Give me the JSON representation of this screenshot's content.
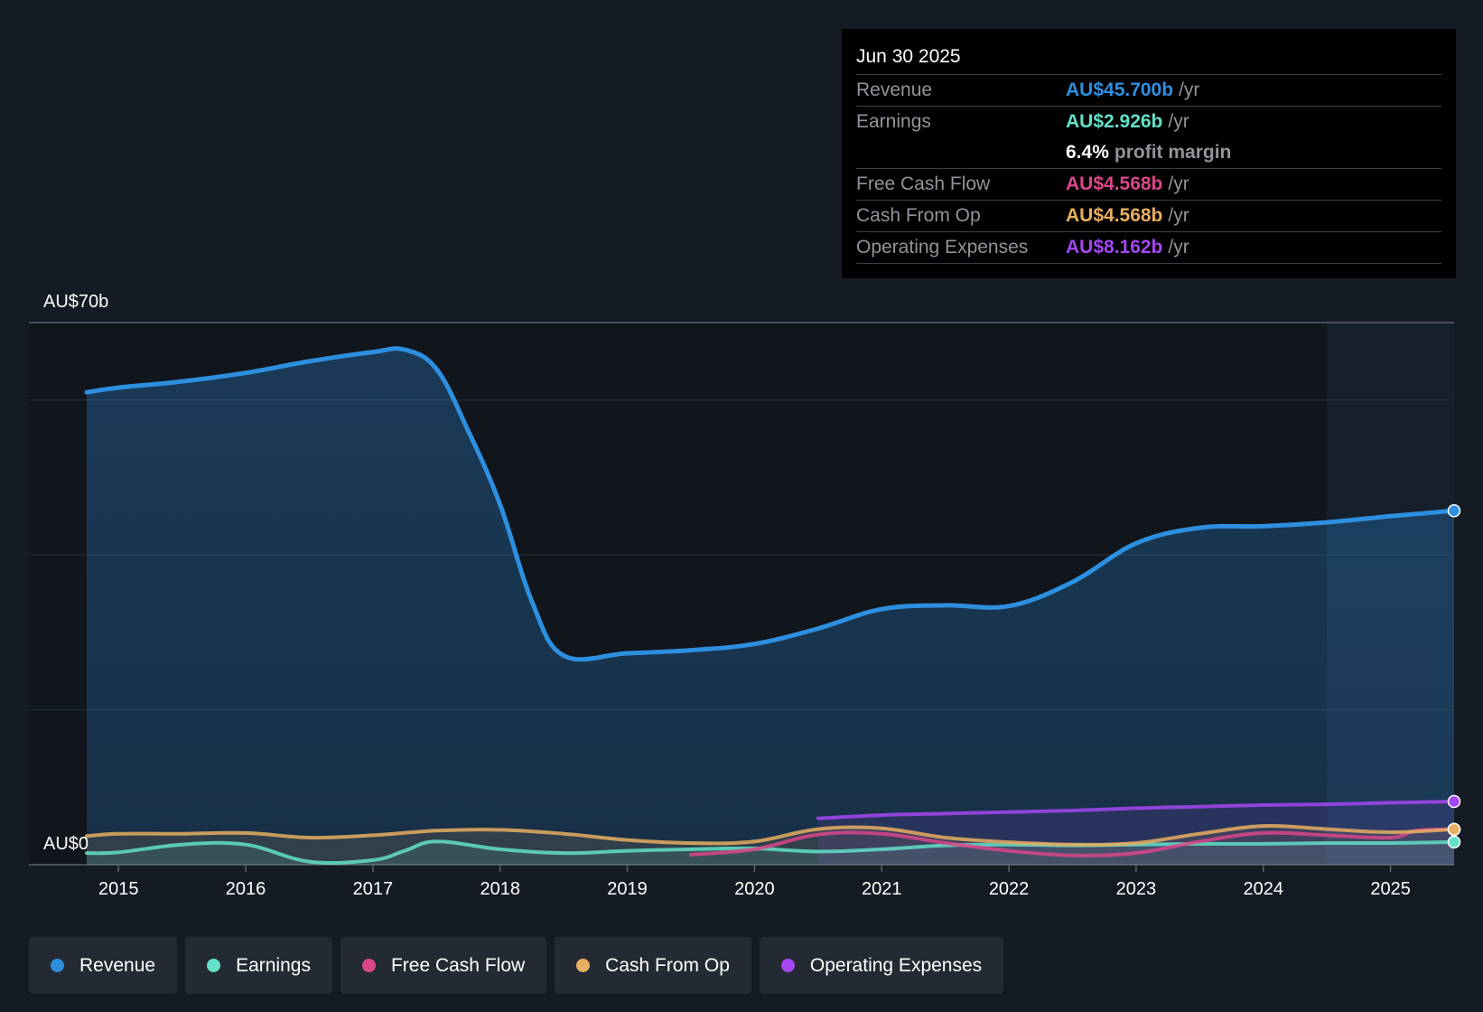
{
  "tooltip": {
    "date": "Jun 30 2025",
    "rows": [
      {
        "label": "Revenue",
        "value": "AU$45.700b",
        "unit": "/yr",
        "color": "#2d8fe0"
      },
      {
        "label": "Earnings",
        "value": "AU$2.926b",
        "unit": "/yr",
        "color": "#62e0c8"
      },
      {
        "label": "",
        "value": "6.4%",
        "unit": "profit margin",
        "color": "#ffffff"
      },
      {
        "label": "Free Cash Flow",
        "value": "AU$4.568b",
        "unit": "/yr",
        "color": "#d9478a"
      },
      {
        "label": "Cash From Op",
        "value": "AU$4.568b",
        "unit": "/yr",
        "color": "#e8ae5f"
      },
      {
        "label": "Operating Expenses",
        "value": "AU$8.162b",
        "unit": "/yr",
        "color": "#a547f2"
      }
    ]
  },
  "legend": [
    {
      "label": "Revenue",
      "color": "#2d8fe0"
    },
    {
      "label": "Earnings",
      "color": "#62e0c8"
    },
    {
      "label": "Free Cash Flow",
      "color": "#d9478a"
    },
    {
      "label": "Cash From Op",
      "color": "#e8ae5f"
    },
    {
      "label": "Operating Expenses",
      "color": "#a547f2"
    }
  ],
  "chart_data": {
    "type": "area",
    "title": "",
    "xlabel": "",
    "ylabel": "",
    "ylim": [
      0,
      70
    ],
    "xlim": [
      2014.75,
      2025.5
    ],
    "y_tick_labels": [
      "AU$70b",
      "AU$0"
    ],
    "x_ticks": [
      2015,
      2016,
      2017,
      2018,
      2019,
      2020,
      2021,
      2022,
      2023,
      2024,
      2025
    ],
    "x_tick_labels": [
      "2015",
      "2016",
      "2017",
      "2018",
      "2019",
      "2020",
      "2021",
      "2022",
      "2023",
      "2024",
      "2025"
    ],
    "grid": true,
    "forecast_shaded_from": 2024.5,
    "series": [
      {
        "name": "Revenue",
        "color": "#2d8fe0",
        "filled": true,
        "x": [
          2014.75,
          2015.0,
          2015.5,
          2016.0,
          2016.5,
          2017.0,
          2017.25,
          2017.5,
          2017.75,
          2018.0,
          2018.25,
          2018.5,
          2019.0,
          2019.5,
          2020.0,
          2020.5,
          2021.0,
          2021.5,
          2022.0,
          2022.5,
          2023.0,
          2023.5,
          2024.0,
          2024.5,
          2025.0,
          2025.5
        ],
        "values": [
          61.0,
          61.6,
          62.4,
          63.5,
          65.0,
          66.2,
          66.5,
          64.0,
          56.0,
          46.5,
          34.0,
          27.0,
          27.3,
          27.7,
          28.5,
          30.5,
          33.0,
          33.5,
          33.4,
          36.5,
          41.5,
          43.5,
          43.7,
          44.2,
          45.0,
          45.7
        ]
      },
      {
        "name": "Earnings",
        "color": "#62e0c8",
        "filled": true,
        "x": [
          2014.75,
          2015.0,
          2015.5,
          2016.0,
          2016.5,
          2017.0,
          2017.25,
          2017.5,
          2018.0,
          2018.5,
          2019.0,
          2019.5,
          2020.0,
          2020.5,
          2021.0,
          2021.5,
          2022.0,
          2022.5,
          2023.0,
          2023.5,
          2024.0,
          2024.5,
          2025.0,
          2025.5
        ],
        "values": [
          1.5,
          1.6,
          2.6,
          2.6,
          0.4,
          0.6,
          1.8,
          3.0,
          2.0,
          1.5,
          1.8,
          2.0,
          2.1,
          1.7,
          2.0,
          2.5,
          2.6,
          2.5,
          2.6,
          2.7,
          2.7,
          2.8,
          2.8,
          2.926
        ]
      },
      {
        "name": "Free Cash Flow",
        "color": "#d9478a",
        "filled": false,
        "x": [
          2019.5,
          2020.0,
          2020.5,
          2021.0,
          2021.5,
          2022.0,
          2022.5,
          2023.0,
          2023.5,
          2024.0,
          2024.5,
          2025.0,
          2025.2,
          2025.5
        ],
        "values": [
          1.3,
          2.0,
          3.9,
          4.0,
          2.8,
          1.8,
          1.2,
          1.5,
          3.0,
          4.1,
          3.8,
          3.5,
          4.4,
          4.568
        ]
      },
      {
        "name": "Cash From Op",
        "color": "#e8ae5f",
        "filled": true,
        "x": [
          2014.75,
          2015.0,
          2015.5,
          2016.0,
          2016.5,
          2017.0,
          2017.5,
          2018.0,
          2018.5,
          2019.0,
          2019.5,
          2020.0,
          2020.5,
          2021.0,
          2021.5,
          2022.0,
          2022.5,
          2023.0,
          2023.5,
          2024.0,
          2024.5,
          2025.0,
          2025.5
        ],
        "values": [
          3.7,
          4.0,
          4.0,
          4.1,
          3.5,
          3.8,
          4.4,
          4.5,
          4.0,
          3.2,
          2.8,
          3.0,
          4.6,
          4.7,
          3.5,
          2.9,
          2.6,
          2.8,
          4.0,
          5.0,
          4.6,
          4.2,
          4.568
        ]
      },
      {
        "name": "Operating Expenses",
        "color": "#a547f2",
        "filled": true,
        "x": [
          2020.5,
          2021.0,
          2021.5,
          2022.0,
          2022.5,
          2023.0,
          2023.5,
          2024.0,
          2024.5,
          2025.0,
          2025.5
        ],
        "values": [
          6.0,
          6.4,
          6.6,
          6.8,
          7.0,
          7.3,
          7.5,
          7.7,
          7.8,
          8.0,
          8.162
        ]
      }
    ]
  }
}
